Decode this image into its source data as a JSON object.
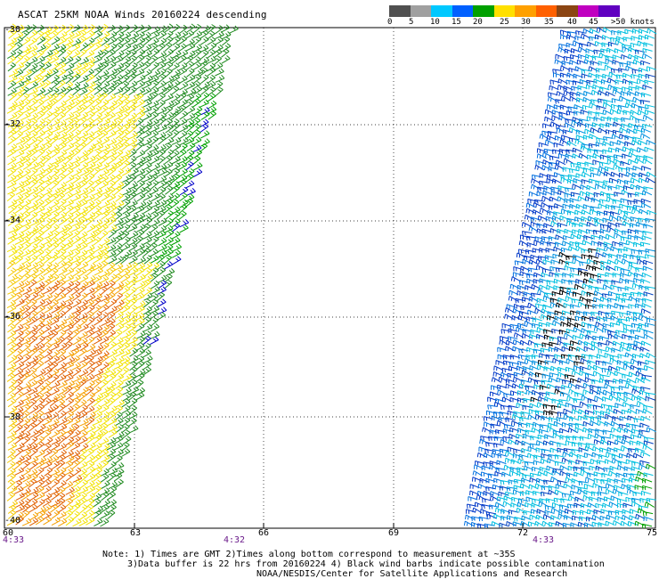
{
  "title": "ASCAT 25KM NOAA Winds 20160224 descending",
  "legend": {
    "labels": [
      "0",
      "5",
      "10",
      "15",
      "20",
      "25",
      "30",
      "35",
      "40",
      "45",
      ">50 knots"
    ],
    "colors": [
      "#505050",
      "#a0a0a0",
      "#00c8ff",
      "#0060ff",
      "#00a000",
      "#ffe000",
      "#ffa000",
      "#ff6000",
      "#8b4513",
      "#c000c0",
      "#6000c0"
    ]
  },
  "lat_labels": [
    "-30",
    "-32",
    "-34",
    "-36",
    "-38",
    "-40"
  ],
  "lon_labels": [
    "60",
    "63",
    "66",
    "69",
    "72",
    "75"
  ],
  "time_labels": [
    "4:33",
    "4:32",
    "4:33"
  ],
  "notes": [
    "Note: 1) Times are GMT 2)Times along bottom correspond to measurement at ~35S",
    "3)Data buffer is 22 hrs from 20160224 4) Black wind barbs indicate possible contamination",
    "NOAA/NESDIS/Center for Satellite Applications and Research"
  ],
  "grid": true,
  "map_extent": {
    "lon": [
      60,
      75
    ],
    "lat": [
      -30,
      -40
    ]
  }
}
